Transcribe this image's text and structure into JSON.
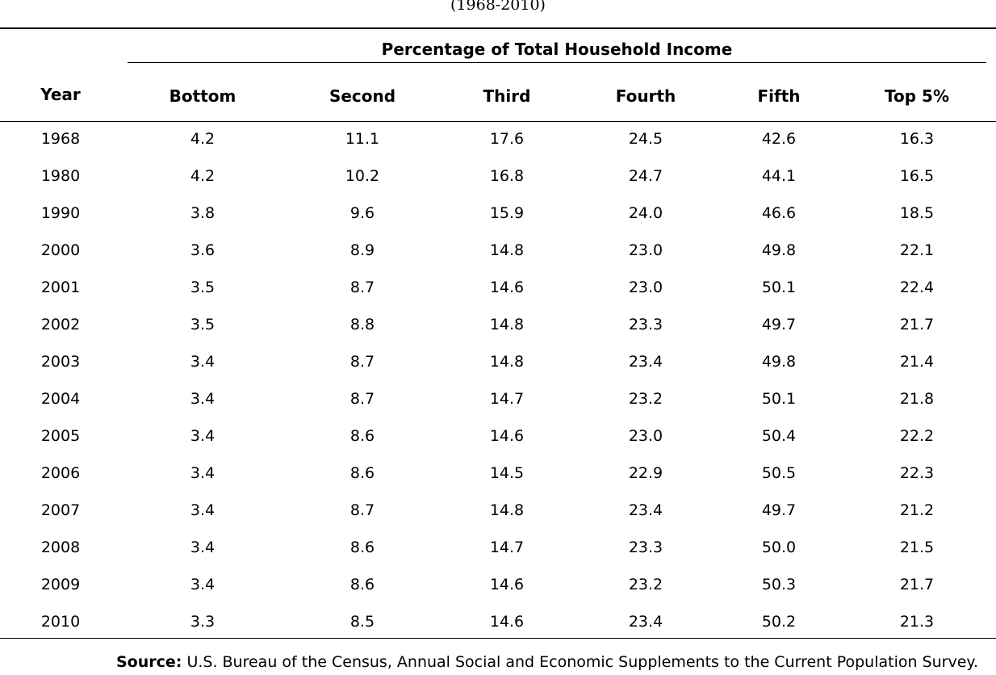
{
  "subtitle": "(1968-2010)",
  "group_header": "Percentage of Total Household Income",
  "columns": [
    "Year",
    "Bottom",
    "Second",
    "Third",
    "Fourth",
    "Fifth",
    "Top 5%"
  ],
  "rows": [
    [
      "1968",
      "4.2",
      "11.1",
      "17.6",
      "24.5",
      "42.6",
      "16.3"
    ],
    [
      "1980",
      "4.2",
      "10.2",
      "16.8",
      "24.7",
      "44.1",
      "16.5"
    ],
    [
      "1990",
      "3.8",
      "9.6",
      "15.9",
      "24.0",
      "46.6",
      "18.5"
    ],
    [
      "2000",
      "3.6",
      "8.9",
      "14.8",
      "23.0",
      "49.8",
      "22.1"
    ],
    [
      "2001",
      "3.5",
      "8.7",
      "14.6",
      "23.0",
      "50.1",
      "22.4"
    ],
    [
      "2002",
      "3.5",
      "8.8",
      "14.8",
      "23.3",
      "49.7",
      "21.7"
    ],
    [
      "2003",
      "3.4",
      "8.7",
      "14.8",
      "23.4",
      "49.8",
      "21.4"
    ],
    [
      "2004",
      "3.4",
      "8.7",
      "14.7",
      "23.2",
      "50.1",
      "21.8"
    ],
    [
      "2005",
      "3.4",
      "8.6",
      "14.6",
      "23.0",
      "50.4",
      "22.2"
    ],
    [
      "2006",
      "3.4",
      "8.6",
      "14.5",
      "22.9",
      "50.5",
      "22.3"
    ],
    [
      "2007",
      "3.4",
      "8.7",
      "14.8",
      "23.4",
      "49.7",
      "21.2"
    ],
    [
      "2008",
      "3.4",
      "8.6",
      "14.7",
      "23.3",
      "50.0",
      "21.5"
    ],
    [
      "2009",
      "3.4",
      "8.6",
      "14.6",
      "23.2",
      "50.3",
      "21.7"
    ],
    [
      "2010",
      "3.3",
      "8.5",
      "14.6",
      "23.4",
      "50.2",
      "21.3"
    ]
  ],
  "source": {
    "label": "Source:",
    "text": "U.S. Bureau of the Census, Annual Social and Economic Supplements to the Current Population Survey."
  }
}
